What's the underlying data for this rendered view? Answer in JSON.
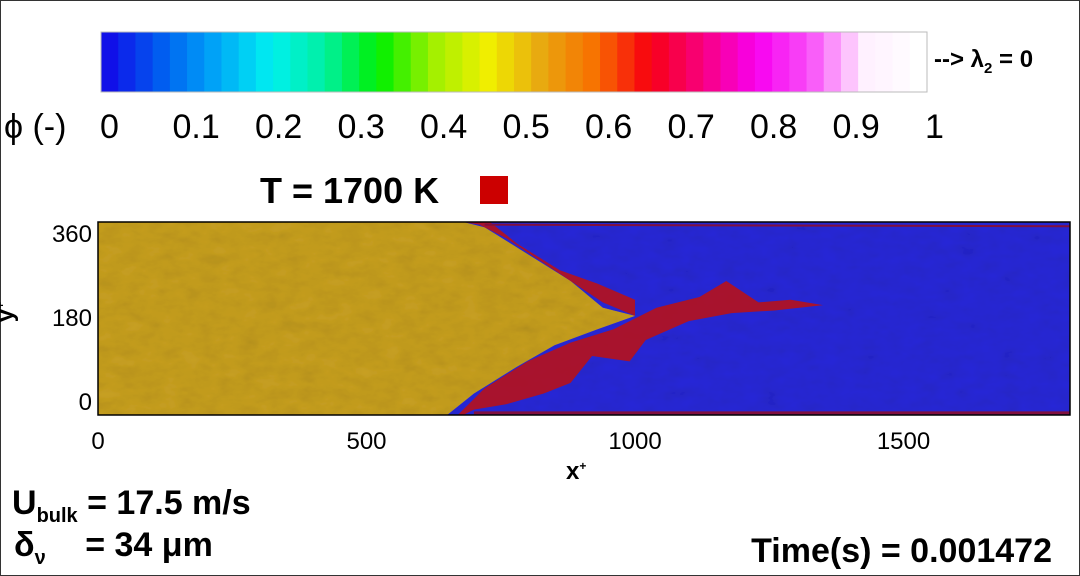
{
  "colorbar": {
    "variable_label": "ϕ (-)",
    "ticks": [
      "0",
      "0.1",
      "0.2",
      "0.3",
      "0.4",
      "0.5",
      "0.6",
      "0.7",
      "0.8",
      "0.9",
      "1"
    ],
    "range": [
      0,
      1
    ],
    "colormap": [
      "#1010e8",
      "#0060f0",
      "#00a8f8",
      "#00f0f0",
      "#00f0a0",
      "#00f000",
      "#a0f000",
      "#f0f000",
      "#e8a810",
      "#f87000",
      "#f80010",
      "#f80080",
      "#f800f0",
      "#f850f8",
      "#fff0ff",
      "#ffffff"
    ],
    "note": "--> λ",
    "note_sub": "2",
    "note_suffix": " = 0"
  },
  "legend": {
    "label": "T = 1700 K",
    "color": "#cc0000"
  },
  "chart_data": {
    "type": "heatmap",
    "xlabel": "x",
    "xlabel_sup": "+",
    "ylabel": "y",
    "ylabel_sup": "+",
    "xlim": [
      0,
      1810
    ],
    "ylim": [
      0,
      360
    ],
    "xticks": [
      "0",
      "500",
      "1000",
      "1500"
    ],
    "yticks": [
      "0",
      "180",
      "360"
    ],
    "colors": {
      "unburnt": "#c8a020",
      "burnt": "#2828d8",
      "flame": "#c01010"
    }
  },
  "annotations": {
    "u_sym": "U",
    "u_sub": "bulk",
    "u_val": " = 17.5 m/s",
    "d_sym": "δ",
    "d_sub": "ν",
    "d_val": " = 34 μm",
    "time": "Time(s) = 0.001472"
  }
}
